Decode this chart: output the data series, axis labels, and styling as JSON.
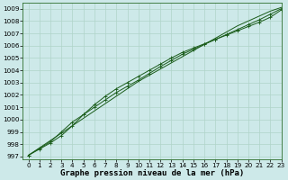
{
  "xlabel": "Graphe pression niveau de la mer (hPa)",
  "xlim": [
    -0.5,
    23
  ],
  "ylim": [
    996.8,
    1009.5
  ],
  "yticks": [
    997,
    998,
    999,
    1000,
    1001,
    1002,
    1003,
    1004,
    1005,
    1006,
    1007,
    1008,
    1009
  ],
  "xticks": [
    0,
    1,
    2,
    3,
    4,
    5,
    6,
    7,
    8,
    9,
    10,
    11,
    12,
    13,
    14,
    15,
    16,
    17,
    18,
    19,
    20,
    21,
    22,
    23
  ],
  "bg_color": "#cde9e9",
  "grid_color": "#b0d4c8",
  "line_color": "#1a5c1a",
  "line1_y": [
    997.1,
    997.7,
    998.3,
    998.9,
    999.5,
    1000.1,
    1000.7,
    1001.3,
    1001.9,
    1002.5,
    1003.1,
    1003.6,
    1004.1,
    1004.6,
    1005.1,
    1005.6,
    1006.1,
    1006.6,
    1007.1,
    1007.6,
    1008.0,
    1008.4,
    1008.8,
    1009.1
  ],
  "line2_y": [
    997.1,
    997.65,
    998.2,
    999.0,
    999.8,
    1000.4,
    1001.0,
    1001.6,
    1002.2,
    1002.7,
    1003.2,
    1003.75,
    1004.3,
    1004.8,
    1005.3,
    1005.7,
    1006.1,
    1006.5,
    1006.9,
    1007.3,
    1007.7,
    1008.1,
    1008.55,
    1009.0
  ],
  "line3_y": [
    997.1,
    997.6,
    998.1,
    998.7,
    999.5,
    1000.4,
    1001.2,
    1001.9,
    1002.5,
    1003.0,
    1003.5,
    1004.0,
    1004.5,
    1005.0,
    1005.45,
    1005.8,
    1006.15,
    1006.5,
    1006.85,
    1007.2,
    1007.55,
    1007.9,
    1008.3,
    1008.9
  ],
  "marker": "+",
  "label_fontsize": 6.5,
  "tick_fontsize": 5.2
}
